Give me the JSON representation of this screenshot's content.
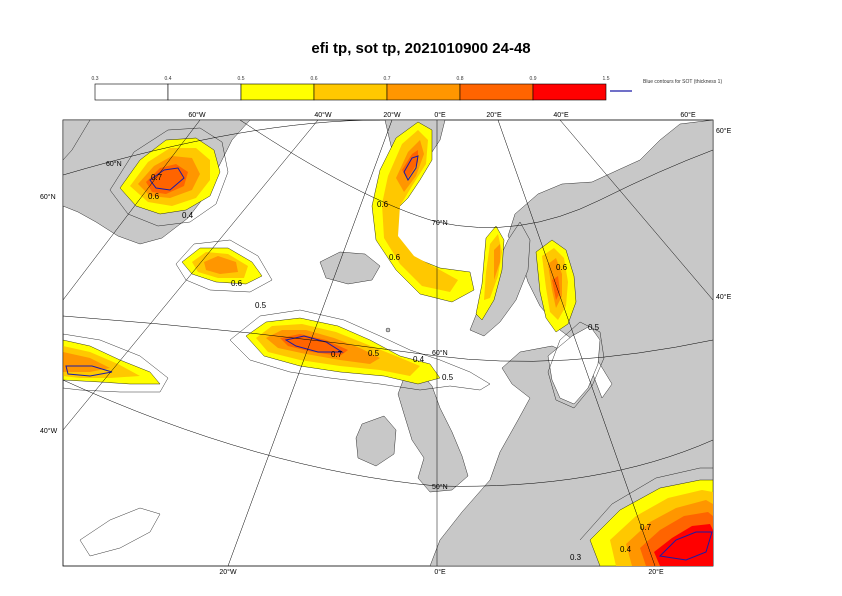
{
  "title": "efi tp, sot tp, 2021010900 24-48",
  "colorbar": {
    "ticks": [
      "0.3",
      "0.4",
      "0.5",
      "0.6",
      "0.7",
      "0.8",
      "0.9",
      "1.5"
    ],
    "colors": [
      "#ffffff",
      "#ffffff",
      "#ffff00",
      "#ffc800",
      "#ff9600",
      "#ff6400",
      "#ff0000"
    ],
    "legend_text": "Blue contours for SOT (thickness 1)",
    "sot_color": "#1a1aa6"
  },
  "map": {
    "land_color": "#c8c8c8",
    "sea_color": "#ffffff",
    "lon_labels_top": [
      "60°W",
      "40°W",
      "20°W",
      "0°E",
      "20°E",
      "40°E",
      "60°E"
    ],
    "lon_labels_bottom": [
      "20°W",
      "0°E",
      "20°E"
    ],
    "lat_labels_left": [
      "60°N",
      "40°W"
    ],
    "lat_labels_right": [
      "60°E",
      "40°E"
    ],
    "lat_labels_inner": [
      "60°N",
      "70°N",
      "60°N",
      "50°N"
    ],
    "contour_labels": [
      "0.7",
      "0.6",
      "0.4",
      "0.6",
      "0.6",
      "0.6",
      "0.5",
      "0.7",
      "0.5",
      "0.4",
      "0.5",
      "0.6",
      "0.5",
      "0.7",
      "0.4",
      "0.3"
    ]
  }
}
